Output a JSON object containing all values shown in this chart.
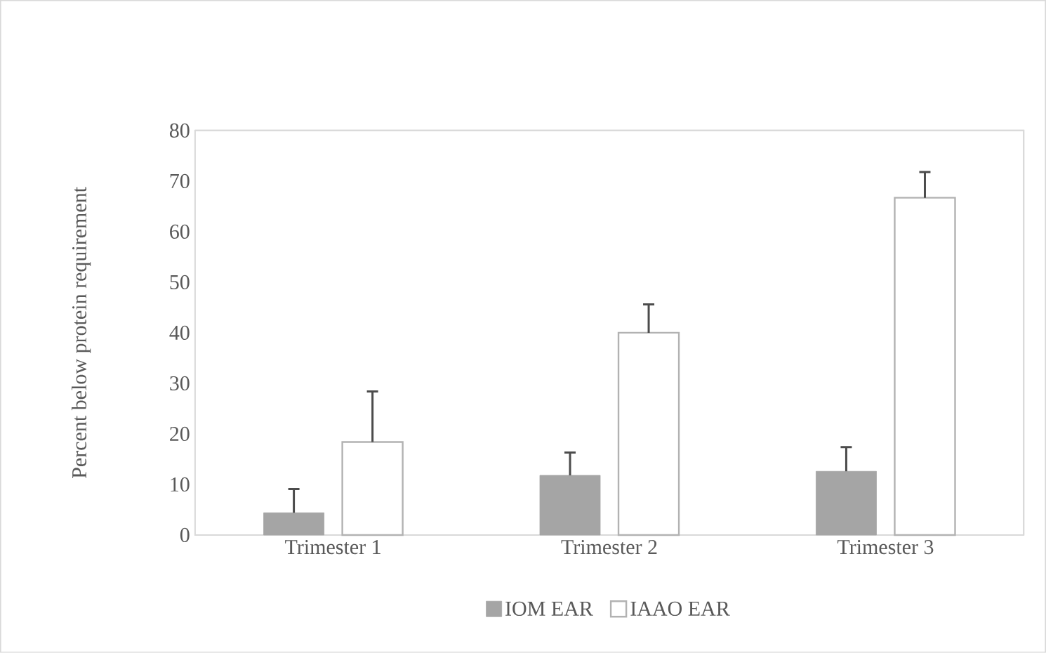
{
  "chart_data": {
    "type": "bar",
    "ylabel": "Percent below protein requirement",
    "categories": [
      "Trimester 1",
      "Trimester 2",
      "Trimester 3"
    ],
    "series": [
      {
        "name": "IOM EAR",
        "color": "#a5a5a5",
        "values": [
          4.4,
          11.8,
          12.6
        ],
        "errors": [
          [
            4.4,
            9.1
          ],
          [
            11.8,
            16.3
          ],
          [
            12.6,
            17.4
          ]
        ]
      },
      {
        "name": "IAAO EAR",
        "color": "#ffffff",
        "values": [
          18.4,
          40.0,
          66.7
        ],
        "errors": [
          [
            18.4,
            28.4
          ],
          [
            40.0,
            45.6
          ],
          [
            66.7,
            71.8
          ]
        ]
      }
    ],
    "ylim": [
      0,
      80
    ],
    "yticks": [
      0,
      10,
      20,
      30,
      40,
      50,
      60,
      70,
      80
    ],
    "grid": false,
    "legend": "bottom"
  }
}
